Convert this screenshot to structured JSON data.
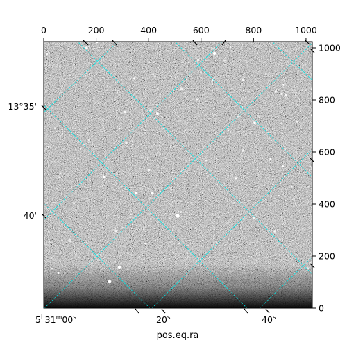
{
  "chart_data": {
    "type": "image",
    "title": "",
    "xlabel": "pos.eq.ra",
    "ylabel": "",
    "colormap": "gray",
    "grid_color": "#00e5e5",
    "pixel_axes": {
      "xlim": [
        0,
        1024
      ],
      "ylim": [
        0,
        1024
      ],
      "x_ticks": [
        0,
        200,
        400,
        600,
        800,
        1000
      ],
      "x_tick_labels": [
        "0",
        "200",
        "400",
        "600",
        "800",
        "1000"
      ],
      "y_ticks": [
        0,
        200,
        400,
        600,
        800,
        1000
      ],
      "y_tick_labels": [
        "0",
        "200",
        "400",
        "600",
        "800",
        "1000"
      ]
    },
    "world_axes": {
      "ra_tick_labels": [
        {
          "main": "5",
          "sup1": "h",
          "main2": "31",
          "sup2": "m",
          "main3": "00",
          "sup3": "s"
        },
        {
          "main": "20",
          "sup1": "s"
        },
        {
          "main": "40",
          "sup1": "s"
        }
      ],
      "dec_tick_labels": [
        "13°35'",
        "40'"
      ]
    }
  }
}
